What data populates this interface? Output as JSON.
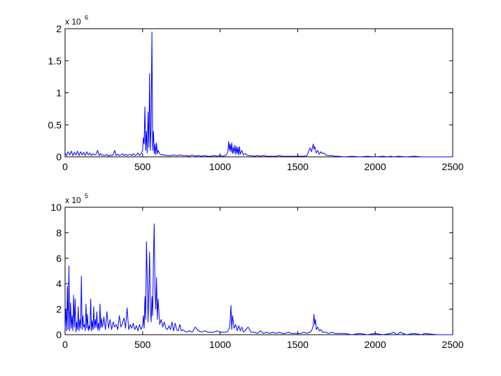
{
  "chart_data": [
    {
      "type": "line",
      "title": "",
      "xlabel": "",
      "ylabel": "",
      "exponent_label": {
        "base": "x 10",
        "power": "6"
      },
      "xlim": [
        0,
        2500
      ],
      "ylim": [
        0,
        2
      ],
      "x_ticks": [
        0,
        500,
        1000,
        1500,
        2000,
        2500
      ],
      "y_ticks": [
        0,
        0.5,
        1,
        1.5,
        2
      ],
      "y_tick_labels": [
        "0",
        "0.5",
        "1",
        "1.5",
        "2"
      ],
      "grid": false,
      "legend": "none",
      "series": [
        {
          "color": "#0000ff",
          "x": [
            0,
            10,
            20,
            30,
            40,
            50,
            60,
            70,
            80,
            90,
            100,
            110,
            120,
            130,
            140,
            150,
            160,
            170,
            180,
            190,
            200,
            210,
            220,
            230,
            240,
            250,
            260,
            270,
            280,
            290,
            300,
            310,
            320,
            330,
            340,
            350,
            360,
            370,
            380,
            390,
            400,
            410,
            420,
            430,
            440,
            450,
            460,
            470,
            480,
            490,
            500,
            505,
            510,
            515,
            520,
            525,
            530,
            535,
            540,
            545,
            550,
            555,
            560,
            565,
            570,
            575,
            580,
            585,
            590,
            595,
            600,
            610,
            620,
            630,
            640,
            650,
            660,
            680,
            700,
            720,
            740,
            760,
            780,
            800,
            820,
            840,
            860,
            880,
            900,
            920,
            940,
            960,
            980,
            1000,
            1020,
            1040,
            1050,
            1055,
            1060,
            1065,
            1070,
            1075,
            1080,
            1085,
            1090,
            1095,
            1100,
            1105,
            1110,
            1115,
            1120,
            1125,
            1130,
            1140,
            1150,
            1160,
            1180,
            1200,
            1220,
            1240,
            1260,
            1280,
            1300,
            1320,
            1340,
            1360,
            1380,
            1400,
            1420,
            1440,
            1460,
            1480,
            1500,
            1520,
            1540,
            1560,
            1570,
            1580,
            1590,
            1600,
            1605,
            1610,
            1620,
            1630,
            1640,
            1650,
            1660,
            1670,
            1680,
            1700,
            1720,
            1740,
            1760,
            1800,
            1850,
            1900,
            1950,
            2000,
            2050,
            2080,
            2100,
            2120,
            2150,
            2200,
            2250,
            2300,
            2400,
            2500
          ],
          "y": [
            0.06,
            0.02,
            0.08,
            0.03,
            0.09,
            0.02,
            0.07,
            0.03,
            0.09,
            0.02,
            0.08,
            0.03,
            0.07,
            0.02,
            0.08,
            0.03,
            0.06,
            0.02,
            0.05,
            0.03,
            0.04,
            0.1,
            0.02,
            0.05,
            0.02,
            0.03,
            0.02,
            0.04,
            0.01,
            0.03,
            0.02,
            0.03,
            0.1,
            0.02,
            0.04,
            0.02,
            0.03,
            0.05,
            0.02,
            0.04,
            0.02,
            0.03,
            0.04,
            0.02,
            0.05,
            0.02,
            0.03,
            0.06,
            0.02,
            0.05,
            0.1,
            0.3,
            0.2,
            0.78,
            0.1,
            0.4,
            0.06,
            0.7,
            0.15,
            1.3,
            0.1,
            0.5,
            1.95,
            0.1,
            0.4,
            0.05,
            0.2,
            0.03,
            0.22,
            0.05,
            0.1,
            0.05,
            0.03,
            0.04,
            0.02,
            0.03,
            0.02,
            0.02,
            0.03,
            0.02,
            0.03,
            0.02,
            0.02,
            0.01,
            0.03,
            0.01,
            0.02,
            0.01,
            0.02,
            0.01,
            0.01,
            0.02,
            0.01,
            0.02,
            0.01,
            0.03,
            0.08,
            0.24,
            0.1,
            0.2,
            0.08,
            0.22,
            0.05,
            0.15,
            0.06,
            0.18,
            0.04,
            0.16,
            0.05,
            0.15,
            0.03,
            0.16,
            0.04,
            0.1,
            0.03,
            0.05,
            0.02,
            0.02,
            0.01,
            0.02,
            0.01,
            0.02,
            0.01,
            0.01,
            0.01,
            0.01,
            0.02,
            0.01,
            0.01,
            0.01,
            0.01,
            0.01,
            0.01,
            0.01,
            0.01,
            0.02,
            0.08,
            0.14,
            0.08,
            0.2,
            0.12,
            0.16,
            0.06,
            0.1,
            0.04,
            0.08,
            0.05,
            0.06,
            0.03,
            0.02,
            0.02,
            0.01,
            0.01,
            0.0,
            0.01,
            0.0,
            0.01,
            0.0,
            0.01,
            0.0,
            0.01,
            0.0,
            0.01,
            0.0,
            0.01,
            0.0,
            0.0,
            0.0
          ]
        }
      ]
    },
    {
      "type": "line",
      "title": "",
      "xlabel": "",
      "ylabel": "",
      "exponent_label": {
        "base": "x 10",
        "power": "5"
      },
      "xlim": [
        0,
        2500
      ],
      "ylim": [
        0,
        10
      ],
      "x_ticks": [
        0,
        500,
        1000,
        1500,
        2000,
        2500
      ],
      "y_ticks": [
        0,
        2,
        4,
        6,
        8,
        10
      ],
      "y_tick_labels": [
        "0",
        "2",
        "4",
        "6",
        "8",
        "10"
      ],
      "grid": false,
      "legend": "none",
      "series": [
        {
          "color": "#0000ff",
          "x": [
            0,
            5,
            10,
            15,
            20,
            25,
            30,
            35,
            40,
            45,
            50,
            55,
            60,
            65,
            70,
            75,
            80,
            85,
            90,
            95,
            100,
            105,
            110,
            115,
            120,
            125,
            130,
            135,
            140,
            145,
            150,
            155,
            160,
            165,
            170,
            175,
            180,
            185,
            190,
            195,
            200,
            205,
            210,
            215,
            220,
            225,
            230,
            235,
            240,
            245,
            250,
            260,
            270,
            280,
            290,
            300,
            310,
            320,
            330,
            340,
            350,
            360,
            370,
            380,
            390,
            400,
            410,
            420,
            430,
            440,
            450,
            460,
            470,
            480,
            490,
            500,
            505,
            510,
            515,
            520,
            525,
            530,
            535,
            540,
            545,
            550,
            555,
            560,
            565,
            570,
            575,
            580,
            585,
            590,
            595,
            600,
            610,
            620,
            630,
            640,
            650,
            660,
            670,
            680,
            690,
            700,
            710,
            720,
            730,
            740,
            750,
            760,
            780,
            800,
            820,
            840,
            860,
            880,
            900,
            920,
            940,
            960,
            980,
            1000,
            1020,
            1040,
            1050,
            1060,
            1065,
            1070,
            1075,
            1080,
            1090,
            1100,
            1110,
            1120,
            1130,
            1140,
            1150,
            1160,
            1180,
            1200,
            1220,
            1240,
            1260,
            1280,
            1300,
            1320,
            1340,
            1360,
            1380,
            1400,
            1420,
            1440,
            1460,
            1480,
            1500,
            1520,
            1540,
            1560,
            1580,
            1590,
            1600,
            1605,
            1610,
            1615,
            1620,
            1630,
            1640,
            1650,
            1660,
            1680,
            1700,
            1720,
            1740,
            1760,
            1780,
            1800,
            1850,
            1900,
            1950,
            2000,
            2050,
            2100,
            2120,
            2140,
            2160,
            2200,
            2250,
            2300,
            2320,
            2400,
            2500
          ],
          "y": [
            0.5,
            2.0,
            0.3,
            3.8,
            0.4,
            5.4,
            0.3,
            2.5,
            0.5,
            1.5,
            0.3,
            3.1,
            0.6,
            2.8,
            0.2,
            1.0,
            0.4,
            2.2,
            0.3,
            1.2,
            0.5,
            4.6,
            0.4,
            1.5,
            0.6,
            0.8,
            0.3,
            2.4,
            0.5,
            1.6,
            0.3,
            0.7,
            0.4,
            2.8,
            0.3,
            1.1,
            0.4,
            2.2,
            0.5,
            1.2,
            0.6,
            1.8,
            0.4,
            0.9,
            0.3,
            2.4,
            0.5,
            1.3,
            0.6,
            0.8,
            1.4,
            0.4,
            1.8,
            0.5,
            1.2,
            0.4,
            1.0,
            0.6,
            0.8,
            0.4,
            1.5,
            0.6,
            0.9,
            1.3,
            0.5,
            2.1,
            0.4,
            0.8,
            0.5,
            0.9,
            0.4,
            0.7,
            0.3,
            0.8,
            0.4,
            0.7,
            1.5,
            0.5,
            3.0,
            1.2,
            7.3,
            4.5,
            1.0,
            3.5,
            6.5,
            2.0,
            1.0,
            3.0,
            1.5,
            6.0,
            8.7,
            3.5,
            2.0,
            4.5,
            1.2,
            2.8,
            0.8,
            1.2,
            0.6,
            1.0,
            0.5,
            0.4,
            0.7,
            0.4,
            1.0,
            0.3,
            0.9,
            0.4,
            0.3,
            0.8,
            0.3,
            0.4,
            0.2,
            0.3,
            0.2,
            0.6,
            0.3,
            0.2,
            0.3,
            0.2,
            0.2,
            0.2,
            0.3,
            0.2,
            0.2,
            0.2,
            0.3,
            0.5,
            1.2,
            2.3,
            0.4,
            1.5,
            0.5,
            0.8,
            0.3,
            0.7,
            0.3,
            0.6,
            0.2,
            0.3,
            0.6,
            0.2,
            0.2,
            0.1,
            0.3,
            0.1,
            0.2,
            0.1,
            0.2,
            0.1,
            0.2,
            0.1,
            0.1,
            0.2,
            0.1,
            0.1,
            0.1,
            0.1,
            0.2,
            0.1,
            0.2,
            0.3,
            0.7,
            1.6,
            0.8,
            1.2,
            0.4,
            0.6,
            0.3,
            0.4,
            0.2,
            0.2,
            0.1,
            0.2,
            0.1,
            0.1,
            0.1,
            0.1,
            0.0,
            0.1,
            0.0,
            0.1,
            0.0,
            0.1,
            0.2,
            0.0,
            0.2,
            0.0,
            0.1,
            0.0,
            0.1,
            0.0,
            0.0
          ]
        }
      ]
    }
  ]
}
